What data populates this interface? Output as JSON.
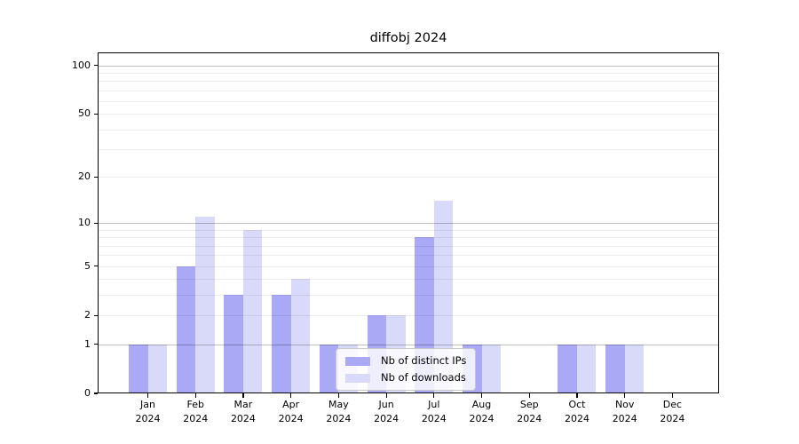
{
  "chart_data": {
    "type": "bar",
    "title": "diffobj 2024",
    "categories": [
      "Jan 2024",
      "Feb 2024",
      "Mar 2024",
      "Apr 2024",
      "May 2024",
      "Jun 2024",
      "Jul 2024",
      "Aug 2024",
      "Sep 2024",
      "Oct 2024",
      "Nov 2024",
      "Dec 2024"
    ],
    "series": [
      {
        "name": "Nb of distinct IPs",
        "color": "#a9a9f6",
        "values": [
          1,
          5,
          3,
          3,
          1,
          2,
          8,
          1,
          0,
          1,
          1,
          0
        ]
      },
      {
        "name": "Nb of downloads",
        "color": "#d9d9fa",
        "values": [
          1,
          11,
          9,
          4,
          1,
          2,
          14,
          1,
          0,
          1,
          1,
          0
        ]
      }
    ],
    "xlabel": "",
    "ylabel": "",
    "yscale": "log1p",
    "ylim": [
      0,
      120
    ],
    "yticks": [
      0,
      1,
      2,
      5,
      10,
      20,
      50,
      100
    ],
    "grid": {
      "major": [
        1,
        10,
        100
      ],
      "minor": [
        2,
        3,
        4,
        5,
        6,
        7,
        8,
        9,
        20,
        30,
        40,
        50,
        60,
        70,
        80,
        90
      ]
    },
    "legend_position": "inside-bottom-center",
    "colors": {
      "grid_major": "rgba(0,0,0,0.25)",
      "grid_minor": "rgba(0,0,0,0.07)",
      "axis": "#000000",
      "background": "#ffffff"
    }
  }
}
